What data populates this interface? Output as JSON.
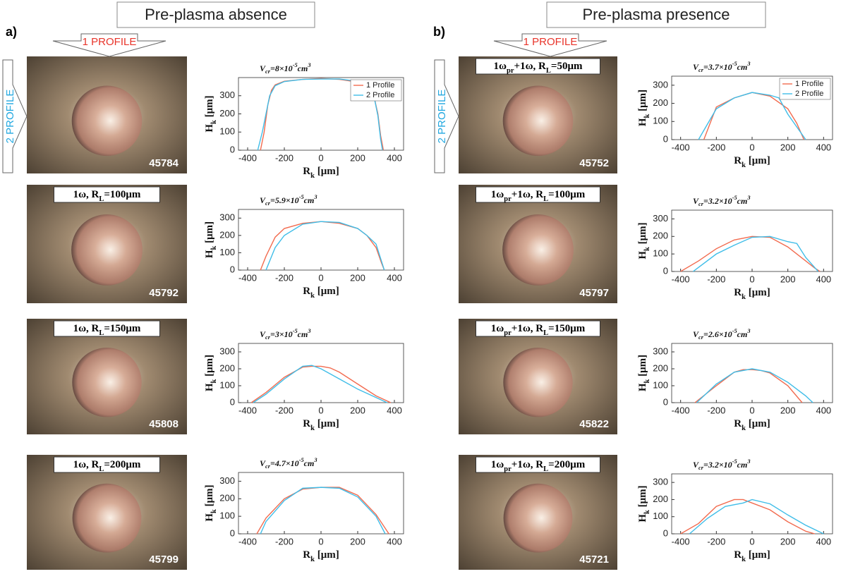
{
  "figure": {
    "panels": [
      "a)",
      "b)"
    ],
    "headers": [
      "Pre-plasma absence",
      "Pre-plasma presence"
    ],
    "arrows": {
      "top": "1 PROFILE",
      "side": "2 PROFILE"
    },
    "photos": [
      {
        "id": "45784"
      },
      {
        "id": "45792",
        "label": [
          "1ω, R",
          "L",
          "=100μm"
        ]
      },
      {
        "id": "45808",
        "label": [
          "1ω, R",
          "L",
          "=150μm"
        ]
      },
      {
        "id": "45799",
        "label": [
          "1ω, R",
          "L",
          "=200μm"
        ]
      },
      {
        "id": "45752",
        "label": [
          "1ω",
          "pr",
          "+1ω, R",
          "L",
          "=50μm"
        ]
      },
      {
        "id": "45797",
        "label": [
          "1ω",
          "pr",
          "+1ω, R",
          "L",
          "=100μm"
        ]
      },
      {
        "id": "45822",
        "label": [
          "1ω",
          "pr",
          "+1ω, R",
          "L",
          "=150μm"
        ]
      },
      {
        "id": "45721",
        "label": [
          "1ω",
          "pr",
          "+1ω, R",
          "L",
          "=200μm"
        ]
      }
    ]
  },
  "chart_data": [
    {
      "type": "line",
      "title": [
        "V",
        "cr",
        "=8×10",
        "-5",
        "cm",
        "3"
      ],
      "xlabel": [
        "R",
        "k",
        " [μm]"
      ],
      "ylabel": [
        "H",
        "k",
        " [μm]"
      ],
      "xlim": [
        -450,
        450
      ],
      "ylim": [
        0,
        400
      ],
      "xticks": [
        -400,
        -200,
        0,
        200,
        400
      ],
      "yticks": [
        0,
        100,
        200,
        300
      ],
      "legend": "upper right",
      "series": [
        {
          "name": "1 Profile",
          "color": "#f26b4f",
          "x": [
            -330,
            -310,
            -290,
            -270,
            -250,
            -200,
            -100,
            0,
            100,
            200,
            250,
            290,
            310,
            325,
            340
          ],
          "values": [
            0,
            100,
            250,
            330,
            360,
            380,
            390,
            395,
            390,
            375,
            350,
            290,
            200,
            80,
            0
          ]
        },
        {
          "name": "2 Profile",
          "color": "#3fbde8",
          "x": [
            -345,
            -320,
            -300,
            -280,
            -250,
            -200,
            -100,
            0,
            100,
            200,
            250,
            290,
            310,
            325,
            335
          ],
          "values": [
            0,
            100,
            200,
            300,
            355,
            378,
            390,
            392,
            392,
            380,
            355,
            290,
            190,
            60,
            0
          ]
        }
      ]
    },
    {
      "type": "line",
      "title": [
        "V",
        "cr",
        "=5.9×10",
        "-5",
        "cm",
        "3"
      ],
      "xlabel": [
        "R",
        "k",
        " [μm]"
      ],
      "ylabel": [
        "H",
        "k",
        " [μm]"
      ],
      "xlim": [
        -450,
        450
      ],
      "ylim": [
        0,
        350
      ],
      "xticks": [
        -400,
        -200,
        0,
        200,
        400
      ],
      "yticks": [
        0,
        100,
        200,
        300
      ],
      "series": [
        {
          "color": "#f26b4f",
          "x": [
            -330,
            -300,
            -250,
            -200,
            -100,
            0,
            100,
            200,
            250,
            300,
            330,
            345
          ],
          "values": [
            0,
            80,
            190,
            240,
            270,
            280,
            270,
            240,
            200,
            130,
            40,
            0
          ]
        },
        {
          "color": "#3fbde8",
          "x": [
            -300,
            -250,
            -200,
            -100,
            0,
            100,
            200,
            250,
            300,
            330,
            345
          ],
          "values": [
            0,
            130,
            200,
            265,
            280,
            275,
            240,
            200,
            150,
            50,
            0
          ]
        }
      ]
    },
    {
      "type": "line",
      "title": [
        "V",
        "cr",
        "=3×10",
        "-5",
        "cm",
        "3"
      ],
      "xlabel": [
        "R",
        "k",
        " [μm]"
      ],
      "ylabel": [
        "H",
        "k",
        " [μm]"
      ],
      "xlim": [
        -450,
        450
      ],
      "ylim": [
        0,
        350
      ],
      "xticks": [
        -400,
        -200,
        0,
        200,
        400
      ],
      "yticks": [
        0,
        100,
        200,
        300
      ],
      "series": [
        {
          "color": "#f26b4f",
          "x": [
            -380,
            -300,
            -200,
            -100,
            -50,
            0,
            50,
            100,
            200,
            300,
            380
          ],
          "values": [
            0,
            60,
            150,
            210,
            215,
            215,
            205,
            180,
            110,
            40,
            0
          ]
        },
        {
          "color": "#3fbde8",
          "x": [
            -370,
            -300,
            -200,
            -100,
            -50,
            0,
            100,
            200,
            300,
            360
          ],
          "values": [
            0,
            50,
            140,
            215,
            220,
            200,
            140,
            80,
            30,
            0
          ]
        }
      ]
    },
    {
      "type": "line",
      "title": [
        "V",
        "cr",
        "=4.7×10",
        "-5",
        "cm",
        "3"
      ],
      "xlabel": [
        "R",
        "k",
        " [μm]"
      ],
      "ylabel": [
        "H",
        "k",
        " [μm]"
      ],
      "xlim": [
        -450,
        450
      ],
      "ylim": [
        0,
        350
      ],
      "xticks": [
        -400,
        -200,
        0,
        200,
        400
      ],
      "yticks": [
        0,
        100,
        200,
        300
      ],
      "series": [
        {
          "color": "#f26b4f",
          "x": [
            -350,
            -300,
            -200,
            -100,
            0,
            100,
            200,
            300,
            370
          ],
          "values": [
            0,
            90,
            200,
            255,
            265,
            265,
            220,
            110,
            0
          ]
        },
        {
          "color": "#3fbde8",
          "x": [
            -330,
            -300,
            -200,
            -100,
            0,
            100,
            200,
            300,
            350
          ],
          "values": [
            0,
            70,
            190,
            260,
            265,
            260,
            210,
            100,
            0
          ]
        }
      ]
    },
    {
      "type": "line",
      "title": [
        "V",
        "cr",
        "=3.7×10",
        "-5",
        "cm",
        "3"
      ],
      "xlabel": [
        "R",
        "k",
        " [μm]"
      ],
      "ylabel": [
        "H",
        "k",
        " [μm]"
      ],
      "xlim": [
        -450,
        450
      ],
      "ylim": [
        0,
        350
      ],
      "xticks": [
        -400,
        -200,
        0,
        200,
        400
      ],
      "yticks": [
        0,
        100,
        200,
        300
      ],
      "legend": "upper right",
      "series": [
        {
          "name": "1 Profile",
          "color": "#f26b4f",
          "x": [
            -270,
            -200,
            -100,
            0,
            100,
            200,
            250,
            290
          ],
          "values": [
            0,
            180,
            230,
            260,
            240,
            170,
            90,
            0
          ]
        },
        {
          "name": "2 Profile",
          "color": "#3fbde8",
          "x": [
            -300,
            -200,
            -100,
            0,
            100,
            150,
            200,
            300
          ],
          "values": [
            0,
            170,
            230,
            260,
            245,
            230,
            140,
            0
          ]
        }
      ]
    },
    {
      "type": "line",
      "title": [
        "V",
        "cr",
        "=3.2×10",
        "-5",
        "cm",
        "3"
      ],
      "xlabel": [
        "R",
        "k",
        " [μm]"
      ],
      "ylabel": [
        "H",
        "k",
        " [μm]"
      ],
      "xlim": [
        -450,
        450
      ],
      "ylim": [
        0,
        350
      ],
      "xticks": [
        -400,
        -200,
        0,
        200,
        400
      ],
      "yticks": [
        0,
        100,
        200,
        300
      ],
      "series": [
        {
          "color": "#f26b4f",
          "x": [
            -400,
            -300,
            -200,
            -100,
            0,
            100,
            200,
            300,
            350,
            380
          ],
          "values": [
            0,
            60,
            130,
            180,
            200,
            195,
            140,
            60,
            20,
            0
          ]
        },
        {
          "color": "#3fbde8",
          "x": [
            -330,
            -200,
            -100,
            0,
            100,
            200,
            250,
            300,
            370
          ],
          "values": [
            0,
            100,
            150,
            195,
            200,
            170,
            160,
            80,
            0
          ]
        }
      ]
    },
    {
      "type": "line",
      "title": [
        "V",
        "cr",
        "=2.6×10",
        "-5",
        "cm",
        "3"
      ],
      "xlabel": [
        "R",
        "k",
        " [μm]"
      ],
      "ylabel": [
        "H",
        "k",
        " [μm]"
      ],
      "xlim": [
        -450,
        450
      ],
      "ylim": [
        0,
        350
      ],
      "xticks": [
        -400,
        -200,
        0,
        200,
        400
      ],
      "yticks": [
        0,
        100,
        200,
        300
      ],
      "series": [
        {
          "color": "#f26b4f",
          "x": [
            -320,
            -200,
            -100,
            -50,
            0,
            50,
            100,
            200,
            280
          ],
          "values": [
            0,
            100,
            180,
            195,
            195,
            190,
            175,
            100,
            0
          ]
        },
        {
          "color": "#3fbde8",
          "x": [
            -310,
            -200,
            -100,
            0,
            100,
            200,
            300,
            340
          ],
          "values": [
            0,
            110,
            180,
            200,
            180,
            120,
            40,
            0
          ]
        }
      ]
    },
    {
      "type": "line",
      "title": [
        "V",
        "cr",
        "=3.2×10",
        "-5",
        "cm",
        "3"
      ],
      "xlabel": [
        "R",
        "k",
        " [μm]"
      ],
      "ylabel": [
        "H",
        "k",
        " [μm]"
      ],
      "xlim": [
        -450,
        450
      ],
      "ylim": [
        0,
        350
      ],
      "xticks": [
        -400,
        -200,
        0,
        200,
        400
      ],
      "yticks": [
        0,
        100,
        200,
        300
      ],
      "series": [
        {
          "color": "#f26b4f",
          "x": [
            -400,
            -300,
            -200,
            -100,
            -50,
            0,
            100,
            200,
            300,
            350
          ],
          "values": [
            0,
            60,
            160,
            200,
            200,
            180,
            140,
            70,
            15,
            0
          ]
        },
        {
          "color": "#3fbde8",
          "x": [
            -350,
            -250,
            -150,
            -50,
            0,
            100,
            200,
            300,
            400
          ],
          "values": [
            0,
            90,
            160,
            180,
            200,
            175,
            110,
            50,
            0
          ]
        }
      ]
    }
  ]
}
